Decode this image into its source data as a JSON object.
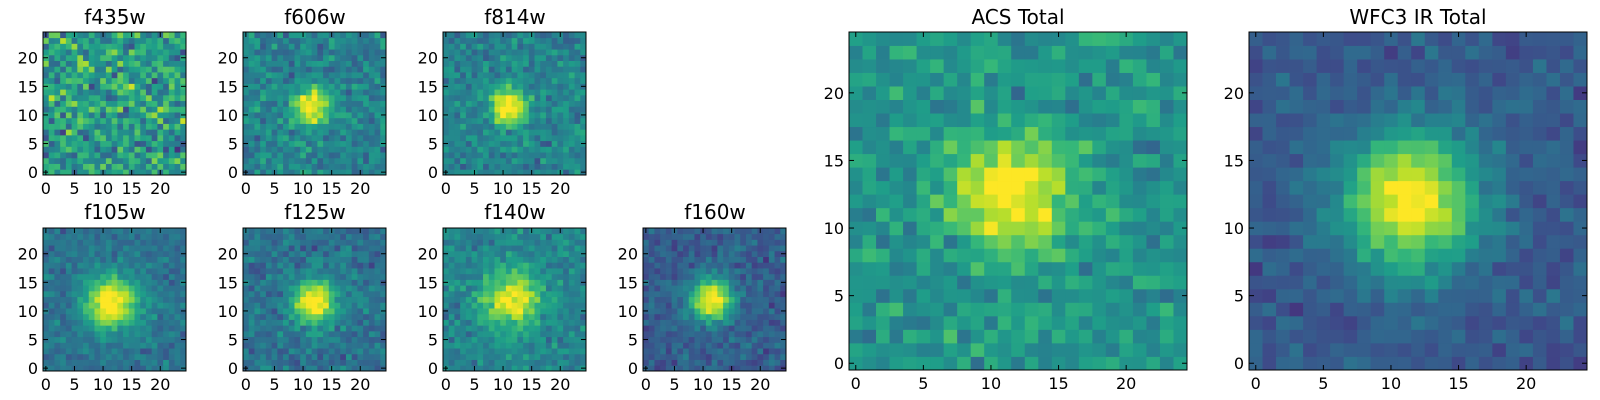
{
  "chart_data": [
    {
      "type": "heatmap",
      "title": "f435w",
      "colormap": "viridis",
      "xlim": [
        0,
        25
      ],
      "ylim": [
        0,
        25
      ],
      "xticks": [
        "0",
        "5",
        "10",
        "15",
        "20"
      ],
      "yticks": [
        "0",
        "5",
        "10",
        "15",
        "20"
      ],
      "peak": [
        12,
        12
      ],
      "signal": 0.05,
      "sigma": 3.0,
      "noise": 0.85,
      "base": 0.55,
      "seed": 11
    },
    {
      "type": "heatmap",
      "title": "f606w",
      "colormap": "viridis",
      "xlim": [
        0,
        25
      ],
      "ylim": [
        0,
        25
      ],
      "xticks": [
        "0",
        "5",
        "10",
        "15",
        "20"
      ],
      "yticks": [
        "0",
        "5",
        "10",
        "15",
        "20"
      ],
      "peak": [
        12,
        12
      ],
      "signal": 0.6,
      "sigma": 2.2,
      "noise": 0.5,
      "base": 0.45,
      "seed": 23
    },
    {
      "type": "heatmap",
      "title": "f814w",
      "colormap": "viridis",
      "xlim": [
        0,
        25
      ],
      "ylim": [
        0,
        25
      ],
      "xticks": [
        "0",
        "5",
        "10",
        "15",
        "20"
      ],
      "yticks": [
        "0",
        "5",
        "10",
        "15",
        "20"
      ],
      "peak": [
        11.5,
        12
      ],
      "signal": 0.65,
      "sigma": 2.2,
      "noise": 0.45,
      "base": 0.45,
      "seed": 37
    },
    {
      "type": "heatmap",
      "title": "f105w",
      "colormap": "viridis",
      "xlim": [
        0,
        25
      ],
      "ylim": [
        0,
        25
      ],
      "xticks": [
        "0",
        "5",
        "10",
        "15",
        "20"
      ],
      "yticks": [
        "0",
        "5",
        "10",
        "15",
        "20"
      ],
      "peak": [
        12,
        12
      ],
      "signal": 0.7,
      "sigma": 3.2,
      "noise": 0.35,
      "base": 0.38,
      "seed": 41
    },
    {
      "type": "heatmap",
      "title": "f125w",
      "colormap": "viridis",
      "xlim": [
        0,
        25
      ],
      "ylim": [
        0,
        25
      ],
      "xticks": [
        "0",
        "5",
        "10",
        "15",
        "20"
      ],
      "yticks": [
        "0",
        "5",
        "10",
        "15",
        "20"
      ],
      "peak": [
        12.5,
        12
      ],
      "signal": 0.7,
      "sigma": 2.6,
      "noise": 0.4,
      "base": 0.38,
      "seed": 53
    },
    {
      "type": "heatmap",
      "title": "f140w",
      "colormap": "viridis",
      "xlim": [
        0,
        25
      ],
      "ylim": [
        0,
        25
      ],
      "xticks": [
        "0",
        "5",
        "10",
        "15",
        "20"
      ],
      "yticks": [
        "0",
        "5",
        "10",
        "15",
        "20"
      ],
      "peak": [
        12,
        12.5
      ],
      "signal": 0.55,
      "sigma": 3.5,
      "noise": 0.4,
      "base": 0.45,
      "seed": 67
    },
    {
      "type": "heatmap",
      "title": "f160w",
      "colormap": "viridis",
      "xlim": [
        0,
        25
      ],
      "ylim": [
        0,
        25
      ],
      "xticks": [
        "0",
        "5",
        "10",
        "15",
        "20"
      ],
      "yticks": [
        "0",
        "5",
        "10",
        "15",
        "20"
      ],
      "peak": [
        12,
        12.5
      ],
      "signal": 0.75,
      "sigma": 2.6,
      "noise": 0.35,
      "base": 0.3,
      "seed": 79
    },
    {
      "type": "heatmap",
      "title": "ACS Total",
      "colormap": "viridis",
      "xlim": [
        0,
        25
      ],
      "ylim": [
        0,
        25
      ],
      "xticks": [
        "0",
        "5",
        "10",
        "15",
        "20"
      ],
      "yticks": [
        "0",
        "5",
        "10",
        "15",
        "20"
      ],
      "peak": [
        12,
        13
      ],
      "signal": 0.55,
      "sigma": 3.0,
      "noise": 0.45,
      "base": 0.52,
      "seed": 97
    },
    {
      "type": "heatmap",
      "title": "WFC3 IR Total",
      "colormap": "viridis",
      "xlim": [
        0,
        25
      ],
      "ylim": [
        0,
        25
      ],
      "xticks": [
        "0",
        "5",
        "10",
        "15",
        "20"
      ],
      "yticks": [
        "0",
        "5",
        "10",
        "15",
        "20"
      ],
      "peak": [
        12,
        12.5
      ],
      "signal": 0.75,
      "sigma": 3.5,
      "noise": 0.28,
      "base": 0.28,
      "seed": 113
    }
  ]
}
